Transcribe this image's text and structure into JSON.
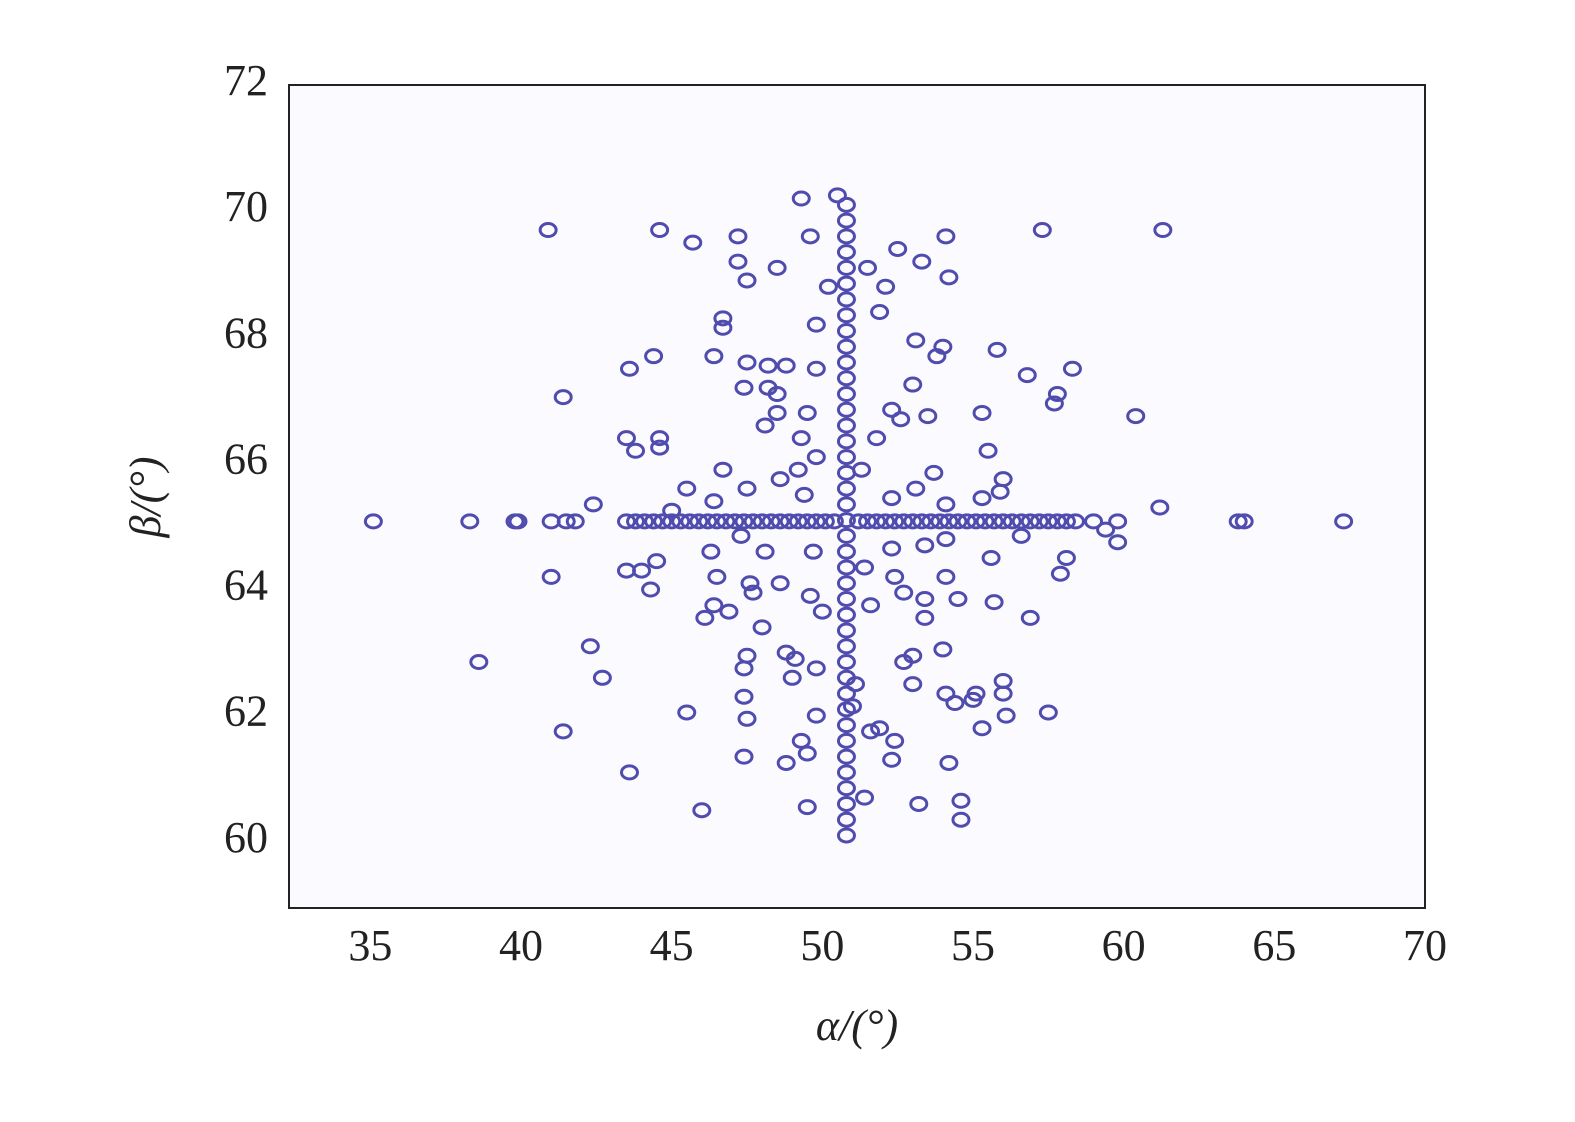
{
  "chart_data": {
    "type": "scatter",
    "xlabel": "α/(°)",
    "ylabel": "β/(°)",
    "xlim": [
      32.3,
      70
    ],
    "ylim": [
      58.95,
      72
    ],
    "xticks": [
      35,
      40,
      45,
      50,
      55,
      60,
      65,
      70
    ],
    "yticks": [
      60,
      62,
      64,
      66,
      68,
      70,
      72
    ],
    "color": "#4f4cae",
    "series": [
      {
        "x": [
          35.1,
          38.3,
          39.8,
          39.9,
          41.0,
          41.5,
          41.8,
          43.5,
          43.8,
          44.1,
          44.4,
          44.7,
          45.0,
          45.3,
          45.6,
          45.9,
          46.2,
          46.5,
          46.8,
          47.1,
          47.4,
          47.7,
          48.0,
          48.3,
          48.6,
          48.9,
          49.2,
          49.5,
          49.8,
          50.1,
          50.4,
          51.2,
          51.5,
          51.8,
          52.1,
          52.4,
          52.7,
          53.0,
          53.3,
          53.6,
          53.9,
          54.2,
          54.5,
          54.8,
          55.1,
          55.4,
          55.7,
          56.0,
          56.3,
          56.6,
          56.9,
          57.2,
          57.5,
          57.8,
          58.1,
          58.4,
          59.0,
          59.8,
          63.8,
          64.0,
          67.3
        ],
        "values": [
          65.08,
          65.08,
          65.08,
          65.08,
          65.08,
          65.08,
          65.08,
          65.08,
          65.08,
          65.08,
          65.08,
          65.08,
          65.08,
          65.08,
          65.08,
          65.08,
          65.08,
          65.08,
          65.08,
          65.08,
          65.08,
          65.08,
          65.08,
          65.08,
          65.08,
          65.08,
          65.08,
          65.08,
          65.08,
          65.08,
          65.08,
          65.08,
          65.08,
          65.08,
          65.08,
          65.08,
          65.08,
          65.08,
          65.08,
          65.08,
          65.08,
          65.08,
          65.08,
          65.08,
          65.08,
          65.08,
          65.08,
          65.08,
          65.08,
          65.08,
          65.08,
          65.08,
          65.08,
          65.08,
          65.08,
          65.08,
          65.08,
          65.08,
          65.08,
          65.08,
          65.08
        ]
      },
      {
        "x": [
          50.8,
          50.8,
          50.8,
          50.8,
          50.8,
          50.8,
          50.8,
          50.8,
          50.8,
          50.8,
          50.8,
          50.8,
          50.8,
          50.8,
          50.8,
          50.8,
          50.8,
          50.8,
          50.8,
          50.8,
          50.8,
          50.8,
          50.8,
          50.8,
          50.8,
          50.8,
          50.8,
          50.8,
          50.8,
          50.8,
          50.8,
          50.8,
          50.8,
          50.8,
          50.8,
          50.8,
          50.8,
          50.8,
          50.8,
          50.8,
          50.8
        ],
        "values": [
          60.1,
          60.35,
          60.6,
          60.85,
          61.1,
          61.35,
          61.6,
          61.85,
          62.1,
          62.35,
          62.6,
          62.85,
          63.1,
          63.35,
          63.6,
          63.85,
          64.1,
          64.35,
          64.6,
          64.85,
          65.1,
          65.35,
          65.6,
          65.85,
          66.1,
          66.35,
          66.6,
          66.85,
          67.1,
          67.35,
          67.6,
          67.85,
          68.1,
          68.35,
          68.6,
          68.85,
          69.1,
          69.35,
          69.6,
          69.85,
          70.1
        ]
      },
      {
        "x": [
          40.9,
          44.6,
          45.7,
          47.2,
          47.2,
          47.5,
          48.5,
          49.3,
          49.6,
          50.5,
          57.3,
          61.3,
          54.1,
          52.5,
          53.3,
          54.2,
          51.5,
          52.1,
          50.2,
          51.9,
          49.8,
          46.7,
          46.7,
          46.4,
          44.4,
          43.6,
          47.5,
          48.2,
          48.8,
          49.8,
          53.1,
          54.0,
          55.8,
          53.8,
          56.8,
          58.3,
          57.8,
          57.7,
          41.4,
          47.4,
          48.2,
          48.5,
          53.0,
          52.3,
          53.5,
          52.6,
          55.3,
          60.4,
          49.5,
          48.5,
          48.1,
          43.5,
          43.8,
          44.6,
          44.6,
          49.3,
          49.8,
          51.8,
          55.5,
          46.7,
          49.2,
          51.3,
          53.7,
          56.0,
          55.9,
          45.5,
          47.5,
          48.6,
          49.4,
          52.3,
          53.1,
          54.1,
          55.3,
          42.4,
          45.0,
          46.4,
          61.2,
          59.4,
          59.8,
          56.6,
          47.3,
          48.1,
          49.7,
          52.3,
          53.4,
          54.1,
          55.6,
          58.1,
          46.3,
          46.5,
          44.5,
          43.5,
          44.0,
          41.0,
          57.9,
          47.6,
          48.6,
          51.4,
          52.4,
          54.1,
          44.3,
          47.7,
          49.6,
          52.7,
          53.4,
          54.5,
          55.7,
          46.4,
          46.1,
          46.9,
          50.0,
          51.6,
          53.4,
          56.9,
          48.0,
          42.3,
          47.5,
          48.8,
          49.1,
          53.0,
          52.7,
          54.0,
          38.6,
          42.7,
          47.4,
          49.0,
          49.8,
          51.1,
          53.0,
          54.1,
          55.1,
          56.0,
          56.0,
          47.4,
          51.0,
          54.4,
          55.0,
          45.5,
          49.8,
          56.1,
          57.5,
          47.5,
          41.4,
          51.6,
          51.9,
          52.4,
          55.3,
          49.3,
          47.4,
          48.8,
          49.5,
          52.3,
          54.2,
          43.6,
          46.0,
          49.5,
          51.4,
          53.2,
          54.6,
          54.6
        ],
        "values": [
          69.7,
          69.7,
          69.5,
          69.6,
          69.2,
          68.9,
          69.1,
          70.2,
          69.6,
          70.25,
          69.7,
          69.7,
          69.6,
          69.4,
          69.2,
          68.95,
          69.1,
          68.8,
          68.8,
          68.4,
          68.2,
          68.3,
          68.15,
          67.7,
          67.7,
          67.5,
          67.6,
          67.55,
          67.55,
          67.5,
          67.95,
          67.85,
          67.8,
          67.7,
          67.4,
          67.5,
          67.1,
          66.95,
          67.05,
          67.2,
          67.2,
          67.1,
          67.25,
          66.85,
          66.75,
          66.7,
          66.8,
          66.75,
          66.8,
          66.8,
          66.6,
          66.4,
          66.2,
          66.4,
          66.25,
          66.4,
          66.1,
          66.4,
          66.2,
          65.9,
          65.9,
          65.9,
          65.85,
          65.75,
          65.55,
          65.6,
          65.6,
          65.75,
          65.5,
          65.45,
          65.6,
          65.35,
          65.45,
          65.35,
          65.25,
          65.4,
          65.3,
          64.95,
          64.75,
          64.85,
          64.85,
          64.6,
          64.6,
          64.65,
          64.7,
          64.8,
          64.5,
          64.5,
          64.6,
          64.2,
          64.45,
          64.3,
          64.3,
          64.2,
          64.25,
          64.1,
          64.1,
          64.35,
          64.2,
          64.2,
          64.0,
          63.95,
          63.9,
          63.95,
          63.85,
          63.85,
          63.8,
          63.75,
          63.55,
          63.65,
          63.65,
          63.75,
          63.55,
          63.55,
          63.4,
          63.1,
          62.95,
          63.0,
          62.9,
          62.95,
          62.85,
          63.05,
          62.85,
          62.6,
          62.75,
          62.6,
          62.75,
          62.5,
          62.5,
          62.35,
          62.35,
          62.55,
          62.35,
          62.3,
          62.15,
          62.2,
          62.25,
          62.05,
          62.0,
          62.0,
          62.05,
          61.95,
          61.75,
          61.75,
          61.8,
          61.6,
          61.8,
          61.6,
          61.35,
          61.25,
          61.4,
          61.3,
          61.25,
          61.1,
          60.5,
          60.55,
          60.7,
          60.6,
          60.65,
          60.35
        ]
      }
    ]
  }
}
